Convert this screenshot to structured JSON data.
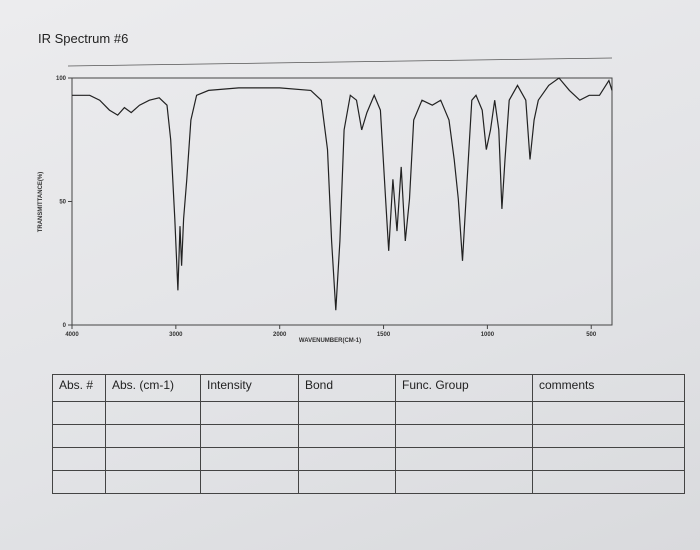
{
  "title": "IR Spectrum #6",
  "chart_data": {
    "type": "line",
    "ylabel": "TRANSMITTANCE(%)",
    "xlabel": "WAVENUMBER(CM-1)",
    "x": [
      4000,
      3830,
      3733,
      3640,
      3560,
      3495,
      3430,
      3350,
      3255,
      3160,
      3085,
      3050,
      3010,
      2980,
      2960,
      2945,
      2925,
      2895,
      2855,
      2800,
      2685,
      2395,
      2000,
      1850,
      1800,
      1770,
      1750,
      1730,
      1710,
      1690,
      1660,
      1630,
      1605,
      1580,
      1545,
      1515,
      1490,
      1475,
      1455,
      1435,
      1415,
      1395,
      1375,
      1355,
      1315,
      1265,
      1225,
      1185,
      1160,
      1140,
      1120,
      1100,
      1075,
      1055,
      1025,
      1005,
      985,
      965,
      945,
      930,
      915,
      895,
      855,
      815,
      795,
      775,
      755,
      705,
      655,
      605,
      555,
      510,
      460,
      415,
      400
    ],
    "values": [
      93,
      93,
      91,
      87,
      85,
      88,
      86,
      89,
      91,
      92,
      89,
      75,
      43,
      14,
      40,
      24,
      43,
      59,
      83,
      93,
      95,
      96,
      96,
      95,
      91,
      71,
      34,
      6,
      34,
      79,
      93,
      91,
      79,
      86,
      93,
      87,
      51,
      30,
      59,
      38,
      64,
      34,
      51,
      83,
      91,
      89,
      91,
      83,
      67,
      51,
      26,
      55,
      91,
      93,
      87,
      71,
      79,
      91,
      79,
      47,
      67,
      91,
      97,
      91,
      67,
      83,
      91,
      97,
      100,
      95,
      91,
      93,
      93,
      99,
      95
    ],
    "color": "#222222",
    "xlim": [
      4000,
      400
    ],
    "xticks": [
      4000,
      3000,
      2000,
      1500,
      1000,
      500
    ],
    "ylim": [
      0,
      100
    ],
    "yticks": [
      0,
      50,
      100
    ]
  },
  "table": {
    "headers": [
      "Abs. #",
      "Abs. (cm-1)",
      "Intensity",
      "Bond",
      "Func. Group",
      "comments"
    ]
  }
}
